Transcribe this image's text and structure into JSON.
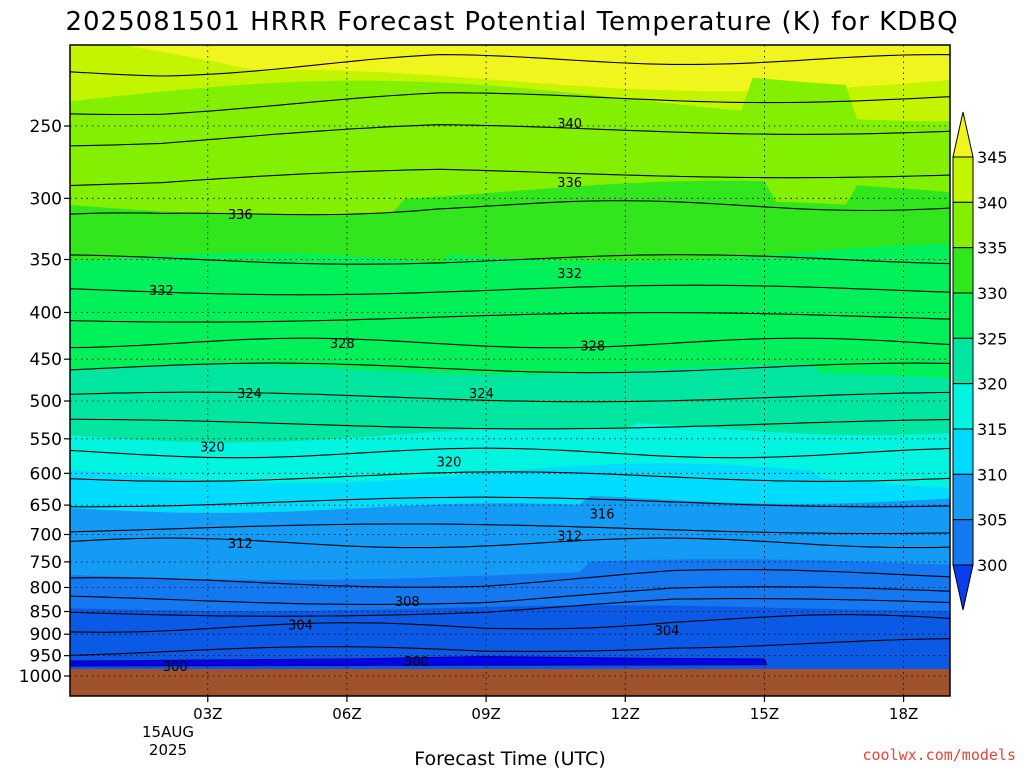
{
  "chart_data": {
    "type": "contour",
    "title": "2025081501 HRRR Forecast Potential Temperature (K) for KDBQ",
    "xlabel": "Forecast Time (UTC)",
    "ylabel": "",
    "x_ticks": [
      "03Z",
      "06Z",
      "09Z",
      "12Z",
      "15Z",
      "18Z"
    ],
    "x_tick_hours": [
      3,
      6,
      9,
      12,
      15,
      18
    ],
    "date_label": [
      "15AUG",
      "2025"
    ],
    "xlim_hours": [
      0.03,
      19
    ],
    "y_ticks": [
      250,
      300,
      350,
      400,
      450,
      500,
      550,
      600,
      650,
      700,
      750,
      800,
      850,
      900,
      950,
      1000
    ],
    "ylim_hpa": [
      200,
      1010
    ],
    "yscale": "log-pressure",
    "ground_hpa": 980,
    "colorbar": {
      "levels": [
        300,
        305,
        310,
        315,
        320,
        325,
        330,
        335,
        340,
        345
      ],
      "colors": [
        "#0a3cf0",
        "#0a5ae6",
        "#1478f0",
        "#149bf5",
        "#00dcff",
        "#00f5e1",
        "#00e6a0",
        "#00f05a",
        "#32e61e",
        "#82f000",
        "#c3f500",
        "#f0f51e"
      ]
    },
    "contour_labels": [
      {
        "text": "340",
        "hour": 10.8,
        "p": 248
      },
      {
        "text": "336",
        "hour": 3.7,
        "p": 312
      },
      {
        "text": "336",
        "hour": 10.8,
        "p": 288
      },
      {
        "text": "332",
        "hour": 2.0,
        "p": 378
      },
      {
        "text": "332",
        "hour": 10.8,
        "p": 362
      },
      {
        "text": "328",
        "hour": 5.9,
        "p": 432
      },
      {
        "text": "328",
        "hour": 11.3,
        "p": 435
      },
      {
        "text": "324",
        "hour": 3.9,
        "p": 490
      },
      {
        "text": "324",
        "hour": 8.9,
        "p": 490
      },
      {
        "text": "320",
        "hour": 3.1,
        "p": 561
      },
      {
        "text": "320",
        "hour": 8.2,
        "p": 582
      },
      {
        "text": "316",
        "hour": 11.5,
        "p": 664
      },
      {
        "text": "312",
        "hour": 3.7,
        "p": 715
      },
      {
        "text": "312",
        "hour": 10.8,
        "p": 702
      },
      {
        "text": "308",
        "hour": 7.3,
        "p": 828
      },
      {
        "text": "304",
        "hour": 5.0,
        "p": 878
      },
      {
        "text": "304",
        "hour": 12.9,
        "p": 890
      },
      {
        "text": "300",
        "hour": 2.3,
        "p": 975
      },
      {
        "text": "300",
        "hour": 7.5,
        "p": 963
      }
    ]
  },
  "credit": "coolwx.com/models"
}
